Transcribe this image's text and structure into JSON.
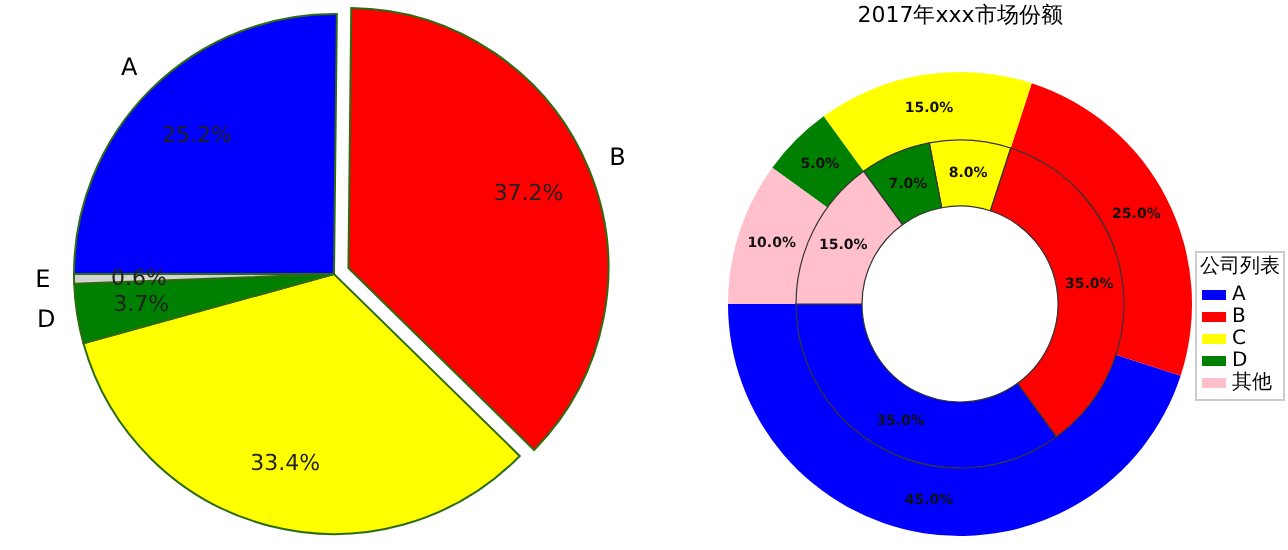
{
  "chart_data": [
    {
      "type": "pie",
      "categories": [
        "A",
        "B",
        null,
        "D",
        "E"
      ],
      "values": [
        25.2,
        37.2,
        33.4,
        3.7,
        0.6
      ],
      "value_labels": [
        "25.2%",
        "37.2%",
        "33.4%",
        "3.7%",
        "0.6%"
      ],
      "colors": [
        "#0000ff",
        "#ff0000",
        "#ffff00",
        "#008000",
        "#d3d3d3"
      ]
    },
    {
      "type": "donut",
      "title": "2017年xxx市场份额",
      "legend_title": "公司列表",
      "categories": [
        "A",
        "B",
        "C",
        "D",
        "其他"
      ],
      "colors": [
        "#0000ff",
        "#ff0000",
        "#ffff00",
        "#008000",
        "#ffc0cb"
      ],
      "series": [
        {
          "values": [
            45,
            25,
            15,
            5,
            10
          ],
          "value_labels": [
            "45.0%",
            "25.0%",
            "15.0%",
            "5.0%",
            "10.0%"
          ]
        },
        {
          "values": [
            35,
            35,
            8,
            7,
            15
          ],
          "value_labels": [
            "35.0%",
            "35.0%",
            "8.0%",
            "7.0%",
            "15.0%"
          ]
        }
      ],
      "legend": "right"
    }
  ]
}
